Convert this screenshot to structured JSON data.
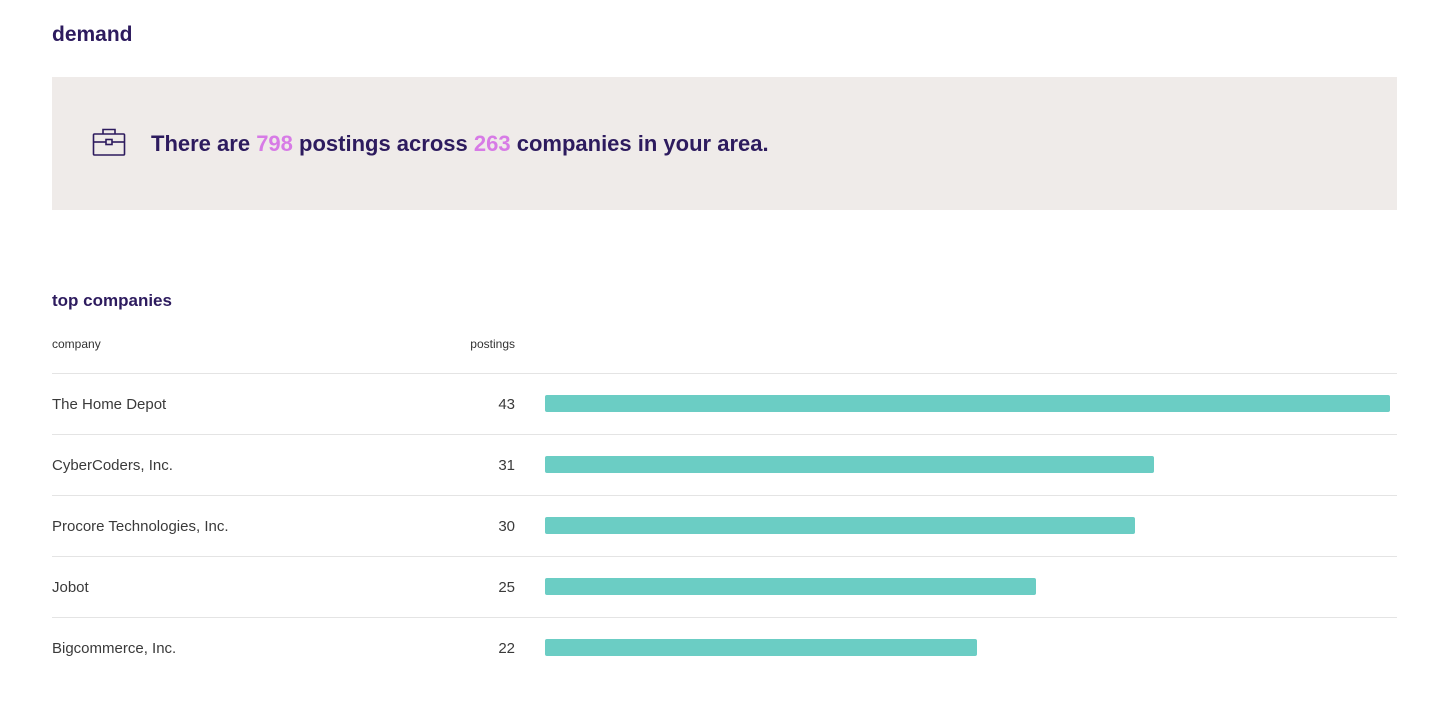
{
  "section": {
    "title": "demand"
  },
  "banner": {
    "icon": "briefcase-icon",
    "prefix": "There are",
    "postings_count": "798",
    "middle": "postings across",
    "companies_count": "263",
    "suffix": "companies in your area."
  },
  "top_companies": {
    "title": "top companies",
    "columns": {
      "company": "company",
      "postings": "postings"
    },
    "bar_color": "#6bcdc4",
    "max_value": 43,
    "rows": [
      {
        "company": "The Home Depot",
        "postings": 43
      },
      {
        "company": "CyberCoders, Inc.",
        "postings": 31
      },
      {
        "company": "Procore Technologies, Inc.",
        "postings": 30
      },
      {
        "company": "Jobot",
        "postings": 25
      },
      {
        "company": "Bigcommerce, Inc.",
        "postings": 22
      }
    ]
  },
  "colors": {
    "title": "#2d1b5e",
    "highlight": "#d77be6",
    "banner_bg": "#efebe9"
  }
}
